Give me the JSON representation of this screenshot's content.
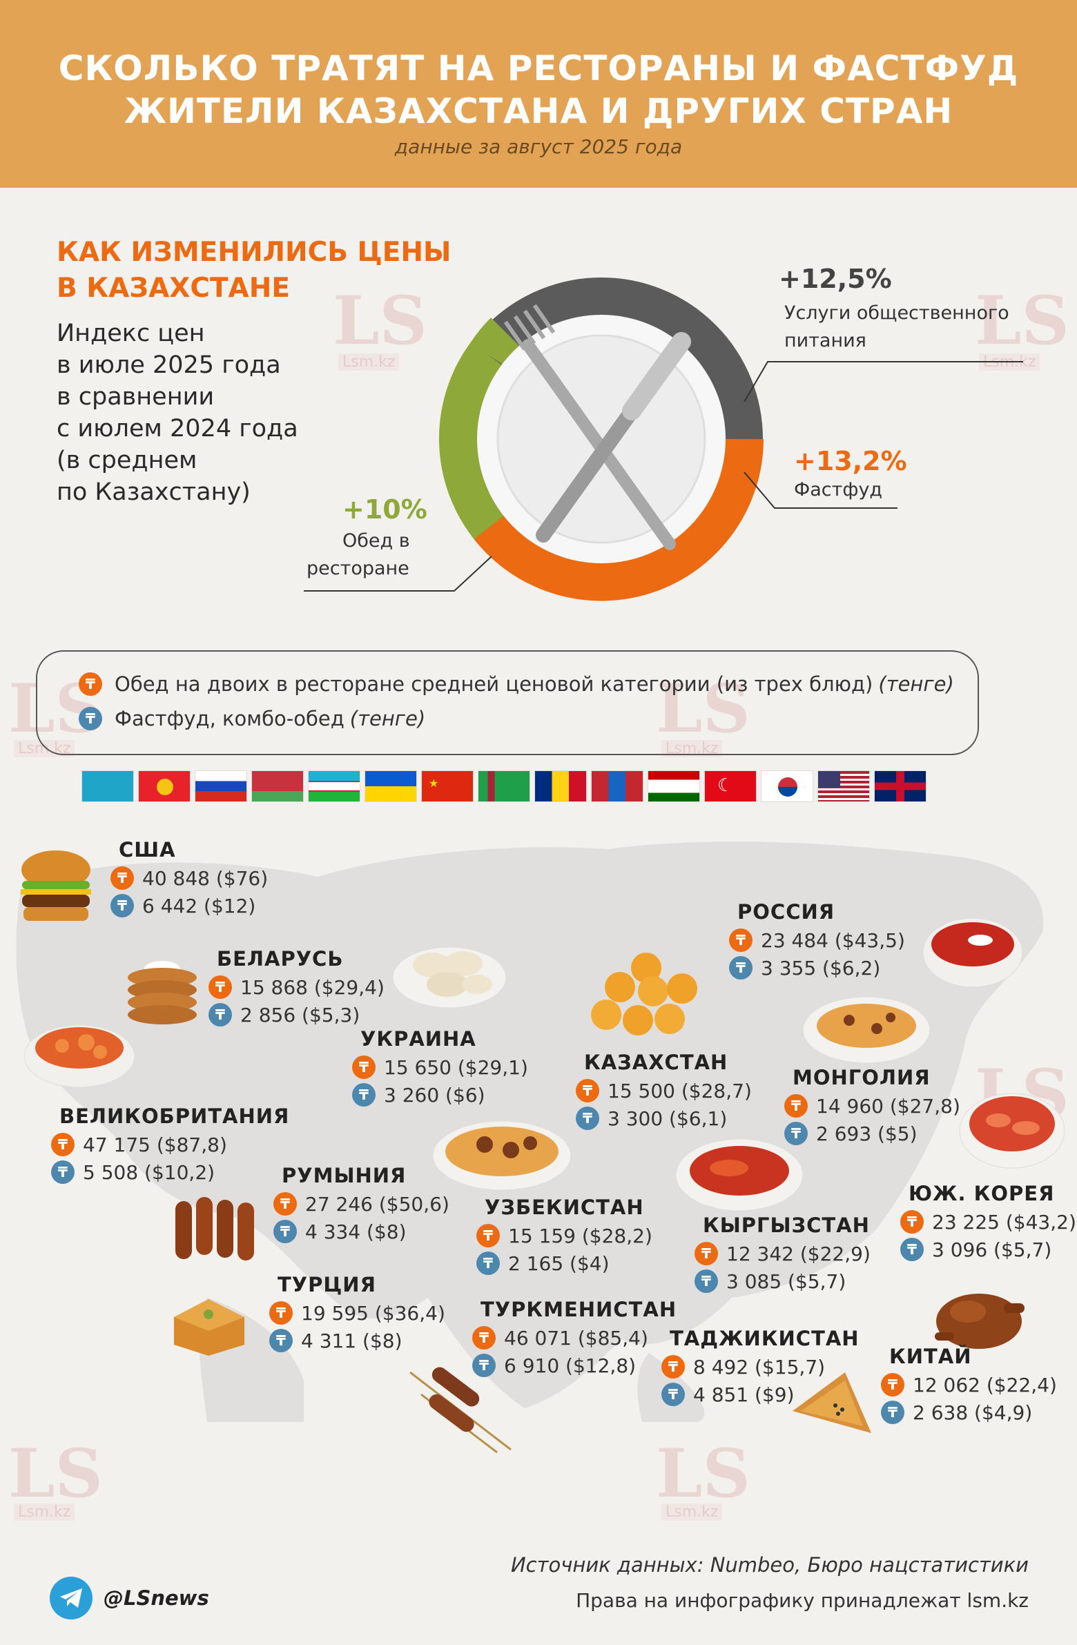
{
  "header": {
    "title_line1": "СКОЛЬКО ТРАТЯТ НА РЕСТОРАНЫ И ФАСТФУД",
    "title_line2": "ЖИТЕЛИ КАЗАХСТАНА И ДРУГИХ СТРАН",
    "subtitle": "данные за август 2025 года"
  },
  "prices_section": {
    "title_line1": "КАК ИЗМЕНИЛИСЬ ЦЕНЫ",
    "title_line2": "В КАЗАХСТАНЕ",
    "index_lines": [
      "Индекс цен",
      "в июле 2025 года",
      "в сравнении",
      "с июлем 2024 года",
      "(в среднем",
      "по Казахстану)"
    ],
    "services": {
      "pct": "+12,5%",
      "label_line1": "Услуги общественного",
      "label_line2": "питания",
      "color": "#5b5b5b"
    },
    "fastfood": {
      "pct": "+13,2%",
      "label": "Фастфуд",
      "color": "#ec6a12"
    },
    "restaurant": {
      "pct": "+10%",
      "label_line1": "Обед в",
      "label_line2": "ресторане",
      "color": "#8fa83a"
    }
  },
  "legend": {
    "restaurant_text": "Обед на двоих в ресторане средней ценовой категории (из трех блюд)",
    "restaurant_unit": "(тенге)",
    "fastfood_text": "Фастфуд, комбо-обед",
    "fastfood_unit": "(тенге)",
    "badge_symbol": "₸"
  },
  "flags": [
    "Казахстан",
    "Кыргызстан",
    "Россия",
    "Беларусь",
    "Узбекистан",
    "Украина",
    "Китай",
    "Туркменистан",
    "Румыния",
    "Монголия",
    "Таджикистан",
    "Турция",
    "Южная Корея",
    "США",
    "Великобритания"
  ],
  "countries": {
    "usa": {
      "name": "США",
      "restaurant": "40 848 ($76)",
      "fastfood": "6 442 ($12)"
    },
    "belarus": {
      "name": "БЕЛАРУСЬ",
      "restaurant": "15 868 ($29,4)",
      "fastfood": "2 856 ($5,3)"
    },
    "ukraine": {
      "name": "УКРАИНА",
      "restaurant": "15 650 ($29,1)",
      "fastfood": "3 260 ($6)"
    },
    "uk": {
      "name": "ВЕЛИКОБРИТАНИЯ",
      "restaurant": "47 175 ($87,8)",
      "fastfood": "5 508 ($10,2)"
    },
    "romania": {
      "name": "РУМЫНИЯ",
      "restaurant": "27 246 ($50,6)",
      "fastfood": "4 334 ($8)"
    },
    "turkey": {
      "name": "ТУРЦИЯ",
      "restaurant": "19 595 ($36,4)",
      "fastfood": "4 311 ($8)"
    },
    "russia": {
      "name": "РОССИЯ",
      "restaurant": "23 484 ($43,5)",
      "fastfood": "3 355 ($6,2)"
    },
    "kazakhstan": {
      "name": "КАЗАХСТАН",
      "restaurant": "15 500 ($28,7)",
      "fastfood": "3 300 ($6,1)"
    },
    "mongolia": {
      "name": "МОНГОЛИЯ",
      "restaurant": "14 960 ($27,8)",
      "fastfood": "2 693 ($5)"
    },
    "uzbekistan": {
      "name": "УЗБЕКИСТАН",
      "restaurant": "15 159 ($28,2)",
      "fastfood": "2 165 ($4)"
    },
    "kyrgyzstan": {
      "name": "КЫРГЫЗСТАН",
      "restaurant": "12 342 ($22,9)",
      "fastfood": "3 085 ($5,7)"
    },
    "skorea": {
      "name": "ЮЖ. КОРЕЯ",
      "restaurant": "23 225 ($43,2)",
      "fastfood": "3 096 ($5,7)"
    },
    "turkmenistan": {
      "name": "ТУРКМЕНИСТАН",
      "restaurant": "46 071 ($85,4)",
      "fastfood": "6 910 ($12,8)"
    },
    "tajikistan": {
      "name": "ТАДЖИКИСТАН",
      "restaurant": "8 492 ($15,7)",
      "fastfood": "4 851 ($9)"
    },
    "china": {
      "name": "КИТАЙ",
      "restaurant": "12 062 ($22,4)",
      "fastfood": "2 638 ($4,9)"
    }
  },
  "footer": {
    "telegram": "@LSnews",
    "source": "Источник данных: Numbeo, Бюро нацстатистики",
    "rights": "Права на инфографику принадлежат lsm.kz"
  },
  "watermark": {
    "logo": "LS",
    "site": "Lsm.kz"
  },
  "colors": {
    "header": "#e2a354",
    "accent": "#ec6a12",
    "fastfood_badge": "#4d87ae",
    "map": "#e1dfdd",
    "background": "#f3f1ee"
  }
}
